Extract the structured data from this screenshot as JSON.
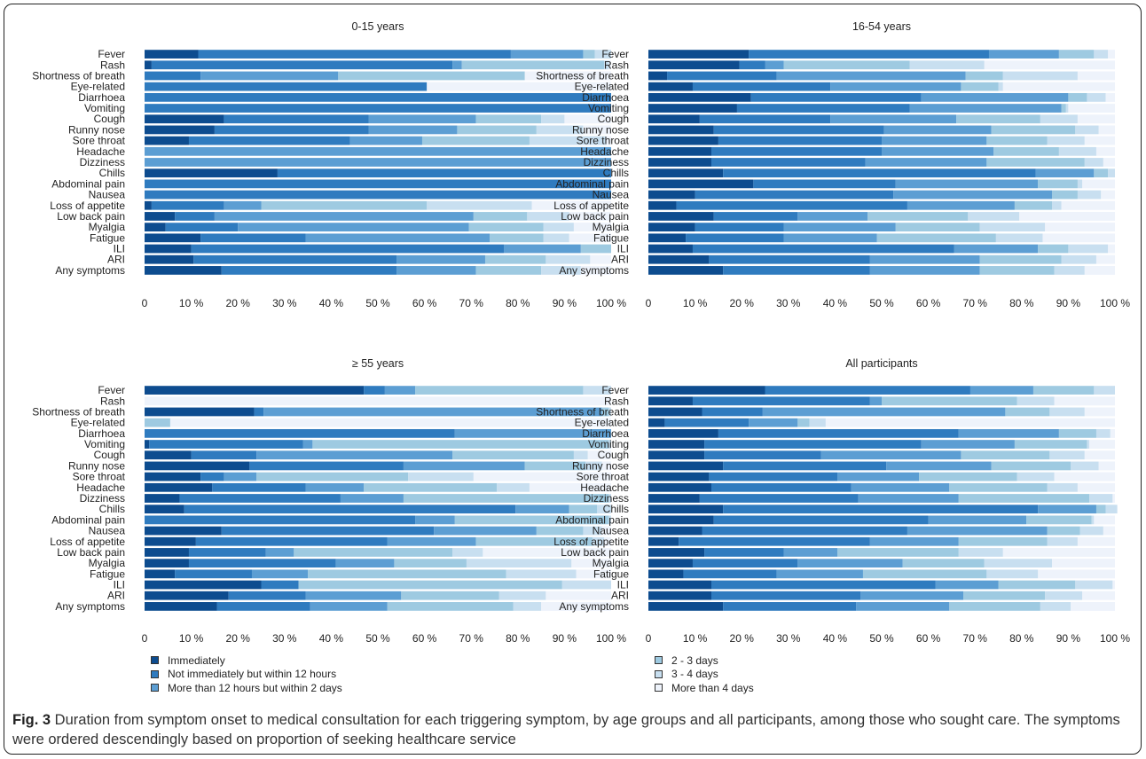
{
  "caption": {
    "label": "Fig. 3",
    "text": " Duration from symptom onset to medical consultation for each triggering symptom, by age groups and all participants, among those who sought care. The symptoms were ordered descendingly based on proportion of seeking healthcare service"
  },
  "legend": {
    "left": [
      {
        "label": "Immediately",
        "color": "#0d4c8f"
      },
      {
        "label": "Not immediately but within 12 hours",
        "color": "#2f7bbf"
      },
      {
        "label": "More than 12 hours but within 2 days",
        "color": "#5c9ed3"
      }
    ],
    "right": [
      {
        "label": "2 - 3 days",
        "color": "#9ecae1"
      },
      {
        "label": "3 - 4 days",
        "color": "#c8dff0"
      },
      {
        "label": "More than 4 days",
        "color": "#eef3fb"
      }
    ]
  },
  "chart_data": [
    {
      "type": "bar",
      "orientation": "horizontal-stacked",
      "title": "0-15 years",
      "categories": [
        "Fever",
        "Rash",
        "Shortness of breath",
        "Eye-related",
        "Diarrhoea",
        "Vomiting",
        "Cough",
        "Runny nose",
        "Sore throat",
        "Headache",
        "Dizziness",
        "Chills",
        "Abdominal pain",
        "Nausea",
        "Loss of appetite",
        "Low back pain",
        "Myalgia",
        "Fatigue",
        "ILI",
        "ARI",
        "Any symptoms"
      ],
      "xlim": [
        0,
        100
      ],
      "xticks": [
        "0",
        "10 %",
        "20 %",
        "30 %",
        "40 %",
        "50 %",
        "60 %",
        "70 %",
        "80 %",
        "90 %",
        "100 %"
      ],
      "series": [
        {
          "name": "Immediately",
          "values": [
            11.5,
            1.5,
            0,
            0,
            0,
            0,
            17,
            15,
            9.5,
            0,
            0,
            28.5,
            0,
            0,
            1.5,
            6.5,
            4.5,
            12,
            10,
            10.5,
            16.5
          ]
        },
        {
          "name": "Not immediately but within 12 hours",
          "values": [
            67,
            64.5,
            12,
            60.5,
            100,
            100,
            31,
            33,
            34.5,
            0,
            0,
            71.5,
            100,
            100,
            15.5,
            8.5,
            15.5,
            22.5,
            67,
            43.5,
            37.5
          ]
        },
        {
          "name": "More than 12 hours but within 2 days",
          "values": [
            15.5,
            2,
            29.5,
            0,
            0,
            0,
            23,
            19,
            15.5,
            100,
            100,
            0,
            0,
            0,
            8,
            55.5,
            49.5,
            39.5,
            16.5,
            19,
            17
          ]
        },
        {
          "name": "2 - 3 days",
          "values": [
            2.5,
            30.5,
            40,
            0,
            0,
            0,
            14,
            17,
            23,
            0,
            0,
            0,
            0,
            0,
            35.5,
            11.5,
            16,
            11.5,
            6.5,
            13,
            14
          ]
        },
        {
          "name": "3 - 4 days",
          "values": [
            3.5,
            1,
            0,
            0,
            0,
            0,
            5,
            10,
            16.5,
            0,
            0,
            0,
            0,
            0,
            22.5,
            9,
            6.5,
            5.5,
            0,
            9.5,
            8.5
          ]
        },
        {
          "name": "More than 4 days",
          "values": [
            0,
            0,
            18.5,
            39.5,
            0,
            0,
            10,
            6,
            1,
            0,
            0,
            0,
            0,
            0,
            17,
            9,
            8,
            9,
            0,
            4,
            6.5
          ]
        }
      ]
    },
    {
      "type": "bar",
      "orientation": "horizontal-stacked",
      "title": "16-54 years",
      "categories": [
        "Fever",
        "Rash",
        "Shortness of breath",
        "Eye-related",
        "Diarrhoea",
        "Vomiting",
        "Cough",
        "Runny nose",
        "Sore throat",
        "Headache",
        "Dizziness",
        "Chills",
        "Abdominal pain",
        "Nausea",
        "Loss of appetite",
        "Low back pain",
        "Myalgia",
        "Fatigue",
        "ILI",
        "ARI",
        "Any symptoms"
      ],
      "xlim": [
        0,
        100
      ],
      "xticks": [
        "0",
        "10 %",
        "20 %",
        "30 %",
        "40 %",
        "50 %",
        "60 %",
        "70 %",
        "80 %",
        "90 %",
        "100 %"
      ],
      "series": [
        {
          "name": "Immediately",
          "values": [
            21.5,
            19.5,
            4,
            9.5,
            22,
            19,
            11,
            14,
            15,
            13.5,
            13.5,
            16,
            22.5,
            10,
            6,
            14,
            10,
            8,
            9.5,
            13,
            16
          ]
        },
        {
          "name": "Not immediately but within 12 hours",
          "values": [
            51.5,
            5.5,
            23.5,
            29.5,
            36.5,
            37,
            28,
            36.5,
            35,
            36.5,
            33,
            67,
            30.5,
            42.5,
            49.5,
            18,
            19,
            21,
            56,
            34.5,
            31.5
          ]
        },
        {
          "name": "More than 12 hours but within 2 days",
          "values": [
            15,
            4,
            40.5,
            28,
            31.5,
            32.5,
            27,
            23,
            22.5,
            24,
            26,
            12.5,
            30.5,
            34,
            23,
            15,
            24,
            20,
            18,
            23.5,
            23.5
          ]
        },
        {
          "name": "2 - 3 days",
          "values": [
            7.5,
            27,
            8,
            8,
            4,
            1,
            18,
            18,
            13,
            14,
            21,
            3,
            8.5,
            5.5,
            8,
            21.5,
            18,
            25.5,
            6.5,
            17.5,
            16
          ]
        },
        {
          "name": "3 - 4 days",
          "values": [
            3,
            16,
            16,
            1,
            4,
            0.5,
            8,
            5,
            8,
            8,
            4,
            1.5,
            1,
            5,
            2,
            11,
            14,
            10,
            8.5,
            7.5,
            6.5
          ]
        },
        {
          "name": "More than 4 days",
          "values": [
            1.5,
            28,
            8,
            24,
            2,
            10,
            8,
            3.5,
            6.5,
            4,
            2.5,
            0,
            7,
            3,
            11.5,
            20.5,
            15,
            15.5,
            1.5,
            4,
            6.5
          ]
        }
      ]
    },
    {
      "type": "bar",
      "orientation": "horizontal-stacked",
      "title": "≥ 55 years",
      "categories": [
        "Fever",
        "Rash",
        "Shortness of breath",
        "Eye-related",
        "Diarrhoea",
        "Vomiting",
        "Cough",
        "Runny nose",
        "Sore throat",
        "Headache",
        "Dizziness",
        "Chills",
        "Abdominal pain",
        "Nausea",
        "Loss of appetite",
        "Low back pain",
        "Myalgia",
        "Fatigue",
        "ILI",
        "ARI",
        "Any symptoms"
      ],
      "xlim": [
        0,
        100
      ],
      "xticks": [
        "0",
        "10 %",
        "20 %",
        "30 %",
        "40 %",
        "50 %",
        "60 %",
        "70 %",
        "80 %",
        "90 %",
        "100 %"
      ],
      "series": [
        {
          "name": "Immediately",
          "values": [
            47,
            0,
            23.5,
            0,
            0,
            1,
            10,
            22.5,
            12,
            14.5,
            7.5,
            8.5,
            0,
            16.5,
            11,
            9.5,
            9.5,
            6.5,
            25,
            18,
            15.5
          ]
        },
        {
          "name": "Not immediately but within 12 hours",
          "values": [
            4.5,
            0,
            2,
            0,
            66.5,
            33,
            14,
            33,
            5,
            20,
            34.5,
            71,
            58,
            45.5,
            41,
            16.5,
            31.5,
            16.5,
            8,
            16.5,
            20
          ]
        },
        {
          "name": "More than 12 hours but within 2 days",
          "values": [
            6.5,
            0,
            72.5,
            0,
            33.5,
            2,
            42,
            26,
            7,
            12.5,
            13.5,
            11.5,
            8.5,
            22,
            19,
            6,
            12.5,
            12,
            0,
            20.5,
            16.5
          ]
        },
        {
          "name": "2 - 3 days",
          "values": [
            36,
            0,
            1.5,
            5.5,
            0,
            63.5,
            26,
            13,
            32.5,
            28.5,
            44,
            6,
            33,
            10,
            25,
            34,
            15.5,
            42.5,
            56.5,
            21,
            27
          ]
        },
        {
          "name": "3 - 4 days",
          "values": [
            6,
            0,
            0.5,
            0,
            0,
            0.5,
            3,
            3.5,
            14,
            7,
            0.5,
            3,
            0.5,
            4,
            2.5,
            6.5,
            22.5,
            15,
            10.5,
            10,
            6
          ]
        },
        {
          "name": "More than 4 days",
          "values": [
            0,
            0,
            0,
            94.5,
            0,
            0,
            5,
            2,
            29.5,
            17.5,
            0,
            0,
            0,
            2,
            1.5,
            27.5,
            8.5,
            7.5,
            0,
            14,
            15
          ]
        }
      ]
    },
    {
      "type": "bar",
      "orientation": "horizontal-stacked",
      "title": "All participants",
      "categories": [
        "Fever",
        "Rash",
        "Shortness of breath",
        "Eye-related",
        "Diarrhoea",
        "Vomiting",
        "Cough",
        "Runny nose",
        "Sore throat",
        "Headache",
        "Dizziness",
        "Chills",
        "Abdominal pain",
        "Nausea",
        "Loss of appetite",
        "Low back pain",
        "Myalgia",
        "Fatigue",
        "ILI",
        "ARI",
        "Any symptoms"
      ],
      "xlim": [
        0,
        100
      ],
      "xticks": [
        "0",
        "10 %",
        "20 %",
        "30 %",
        "40 %",
        "50 %",
        "60 %",
        "70 %",
        "80 %",
        "90 %",
        "100 %"
      ],
      "series": [
        {
          "name": "Immediately",
          "values": [
            25,
            9.5,
            11.5,
            3.5,
            15,
            12,
            12,
            16,
            13,
            13.5,
            11,
            16,
            14,
            11.5,
            6.5,
            12,
            9.5,
            7.5,
            13.5,
            13.5,
            16
          ]
        },
        {
          "name": "Not immediately but within 12 hours",
          "values": [
            44,
            38,
            13,
            18,
            51.5,
            46.5,
            25,
            35,
            27.5,
            30,
            34,
            67.5,
            46,
            44,
            41,
            17,
            22.5,
            20,
            48,
            32,
            28.5
          ]
        },
        {
          "name": "More than 12 hours but within 2 days",
          "values": [
            13.5,
            2.5,
            52,
            10.5,
            21.5,
            20,
            30,
            22.5,
            17.5,
            21,
            21.5,
            12.5,
            21,
            30,
            19,
            11.5,
            22.5,
            18.5,
            13.5,
            22,
            20
          ]
        },
        {
          "name": "2 - 3 days",
          "values": [
            13,
            29,
            9.5,
            2.5,
            8,
            15.5,
            19,
            17,
            21,
            21,
            28,
            2,
            14,
            7,
            19,
            26,
            17.5,
            26.5,
            16.5,
            17.5,
            19.5
          ]
        },
        {
          "name": "3 - 4 days",
          "values": [
            4.5,
            8,
            7.5,
            3.5,
            3,
            0.5,
            7.5,
            6,
            8,
            6.5,
            5,
            2.5,
            0.5,
            5,
            6.5,
            9.5,
            14.5,
            11,
            8,
            8,
            6.5
          ]
        },
        {
          "name": "More than 4 days",
          "values": [
            0,
            13,
            6.5,
            62,
            1,
            5.5,
            6.5,
            3.5,
            13,
            8,
            0.5,
            0,
            4.5,
            2.5,
            8,
            24,
            13.5,
            16.5,
            0.5,
            7,
            9.5
          ]
        }
      ]
    }
  ]
}
